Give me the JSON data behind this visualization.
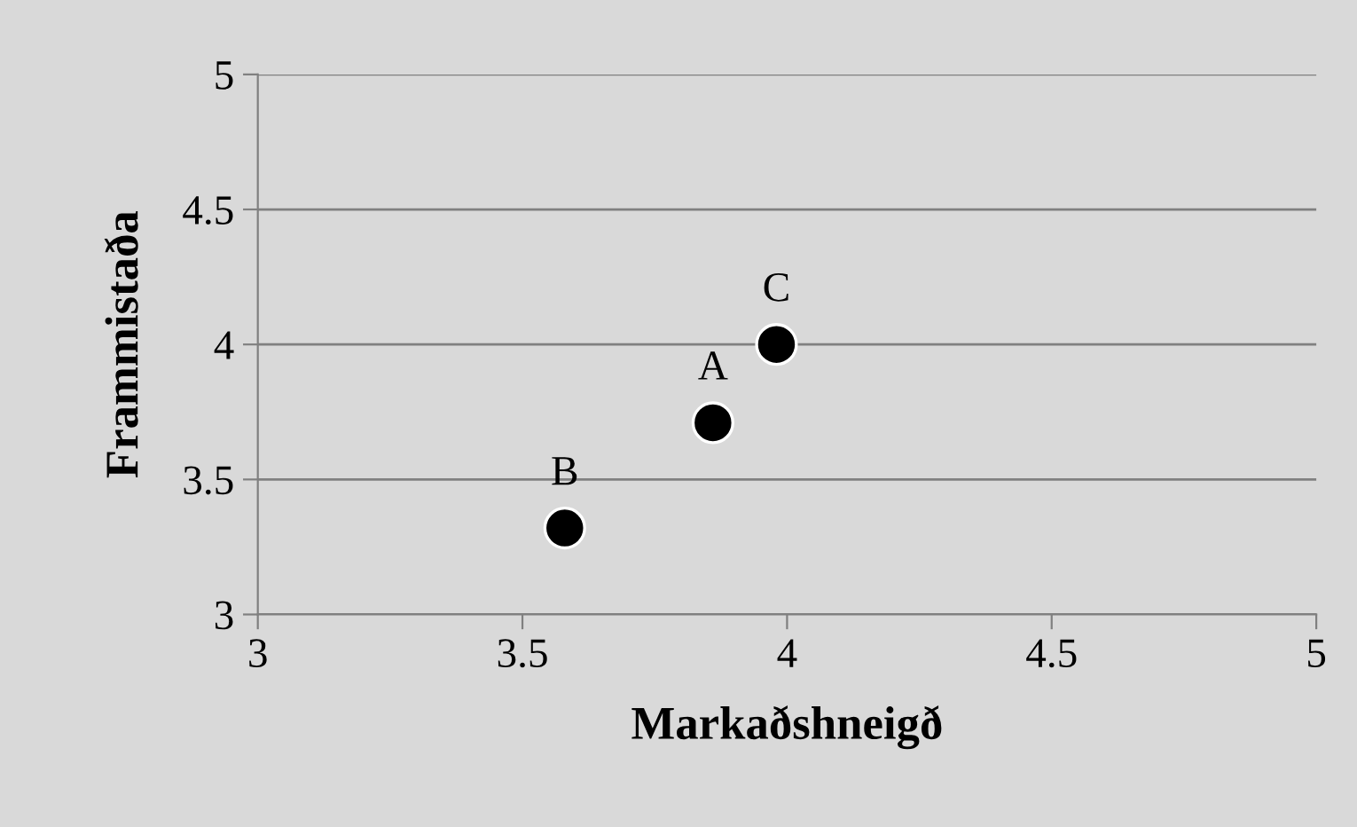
{
  "chart_data": {
    "type": "scatter",
    "xlabel": "Markaðshneigð",
    "ylabel": "Frammistaða",
    "x": [
      3.86,
      3.58,
      3.98
    ],
    "values": [
      3.71,
      3.32,
      4.0
    ],
    "color": "#000000",
    "marker": "circle",
    "xlim": [
      3,
      5
    ],
    "ylim": [
      3,
      5
    ],
    "xticks": [
      3,
      3.5,
      4,
      4.5,
      5
    ],
    "yticks": [
      3,
      3.5,
      4,
      4.5,
      5
    ],
    "grid": "y",
    "annotations": [
      {
        "text": "A",
        "x": 3.86,
        "y": 3.71
      },
      {
        "text": "B",
        "x": 3.58,
        "y": 3.32
      },
      {
        "text": "C",
        "x": 3.98,
        "y": 4.0
      }
    ]
  }
}
